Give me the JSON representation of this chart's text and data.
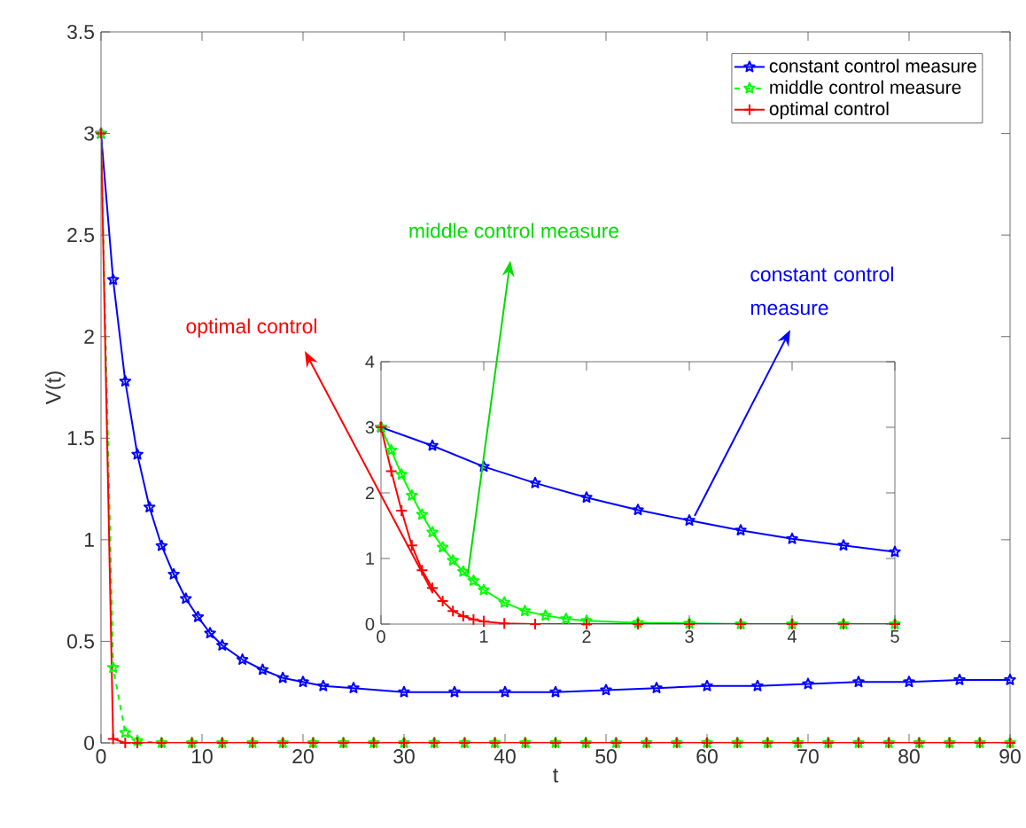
{
  "chart_data": [
    {
      "type": "line",
      "xlabel": "t",
      "ylabel": "V(t)",
      "xlim": [
        0,
        90
      ],
      "ylim": [
        0,
        3.5
      ],
      "xticks": [
        0,
        10,
        20,
        30,
        40,
        50,
        60,
        70,
        80,
        90
      ],
      "yticks": [
        0,
        0.5,
        1,
        1.5,
        2,
        2.5,
        3,
        3.5
      ],
      "legend": "top right",
      "grid": false,
      "series": [
        {
          "name": "constant control measure",
          "color": "#0000ff",
          "marker": "star",
          "line_style": "solid",
          "x": [
            0,
            1.2,
            2.4,
            3.6,
            4.8,
            6,
            7.2,
            8.4,
            9.6,
            10.8,
            12,
            14,
            16,
            18,
            20,
            22,
            25,
            30,
            35,
            40,
            45,
            50,
            55,
            60,
            65,
            70,
            75,
            80,
            85,
            90
          ],
          "values": [
            3,
            2.28,
            1.78,
            1.42,
            1.16,
            0.97,
            0.83,
            0.71,
            0.62,
            0.54,
            0.48,
            0.41,
            0.36,
            0.32,
            0.3,
            0.28,
            0.27,
            0.25,
            0.25,
            0.25,
            0.25,
            0.26,
            0.27,
            0.28,
            0.28,
            0.29,
            0.3,
            0.3,
            0.31,
            0.31
          ]
        },
        {
          "name": "middle control measure",
          "color": "#00ff00",
          "marker": "star",
          "line_style": "dashed",
          "x": [
            0,
            1.2,
            2.4,
            3.6,
            6,
            9,
            12,
            15,
            18,
            21,
            24,
            27,
            30,
            33,
            36,
            39,
            42,
            45,
            48,
            51,
            54,
            57,
            60,
            63,
            66,
            69,
            72,
            75,
            78,
            81,
            84,
            87,
            90
          ],
          "values": [
            3,
            0.37,
            0.05,
            0.01,
            0,
            0,
            0,
            0,
            0,
            0,
            0,
            0,
            0,
            0,
            0,
            0,
            0,
            0,
            0,
            0,
            0,
            0,
            0,
            0,
            0,
            0,
            0,
            0,
            0,
            0,
            0,
            0,
            0
          ]
        },
        {
          "name": "optimal control",
          "color": "#ff0000",
          "marker": "cross",
          "line_style": "solid",
          "x": [
            0,
            1.2,
            2.4,
            3.6,
            6,
            9,
            12,
            15,
            18,
            21,
            24,
            27,
            30,
            33,
            36,
            39,
            42,
            45,
            48,
            51,
            54,
            57,
            60,
            63,
            66,
            69,
            72,
            75,
            78,
            81,
            84,
            87,
            90
          ],
          "values": [
            3,
            0.02,
            0,
            0,
            0,
            0,
            0,
            0,
            0,
            0,
            0,
            0,
            0,
            0,
            0,
            0,
            0,
            0,
            0,
            0,
            0,
            0,
            0,
            0,
            0,
            0,
            0,
            0,
            0,
            0,
            0,
            0,
            0
          ]
        }
      ],
      "annotations": [
        "optimal control",
        "middle control measure",
        "constant control measure"
      ]
    },
    {
      "type": "line",
      "xlim": [
        0,
        5
      ],
      "ylim": [
        0,
        4
      ],
      "xticks": [
        0,
        1,
        2,
        3,
        4,
        5
      ],
      "yticks": [
        0,
        1,
        2,
        3,
        4
      ],
      "grid": false,
      "series": [
        {
          "color": "#0000ff",
          "marker": "star",
          "line_style": "solid",
          "x": [
            0,
            0.5,
            1,
            1.5,
            2,
            2.5,
            3,
            3.5,
            4,
            4.5,
            5
          ],
          "values": [
            3,
            2.72,
            2.4,
            2.15,
            1.93,
            1.74,
            1.58,
            1.43,
            1.3,
            1.2,
            1.1
          ]
        },
        {
          "color": "#00ff00",
          "marker": "star",
          "line_style": "solid",
          "x": [
            0,
            0.1,
            0.2,
            0.3,
            0.4,
            0.5,
            0.6,
            0.7,
            0.8,
            0.9,
            1,
            1.2,
            1.4,
            1.6,
            1.8,
            2,
            2.5,
            3,
            3.5,
            4,
            4.5,
            5
          ],
          "values": [
            3,
            2.65,
            2.28,
            1.96,
            1.67,
            1.4,
            1.17,
            0.97,
            0.8,
            0.66,
            0.52,
            0.33,
            0.2,
            0.13,
            0.08,
            0.05,
            0.02,
            0.01,
            0,
            0,
            0,
            0
          ]
        },
        {
          "color": "#ff0000",
          "marker": "cross",
          "line_style": "solid",
          "x": [
            0,
            0.1,
            0.2,
            0.3,
            0.4,
            0.5,
            0.6,
            0.7,
            0.8,
            0.9,
            1,
            1.2,
            1.5,
            2,
            2.5,
            3,
            3.5,
            4,
            4.5,
            5
          ],
          "values": [
            3,
            2.33,
            1.73,
            1.2,
            0.82,
            0.55,
            0.35,
            0.2,
            0.12,
            0.07,
            0.04,
            0.01,
            0,
            0,
            0,
            0,
            0,
            0,
            0,
            0
          ]
        }
      ]
    }
  ]
}
